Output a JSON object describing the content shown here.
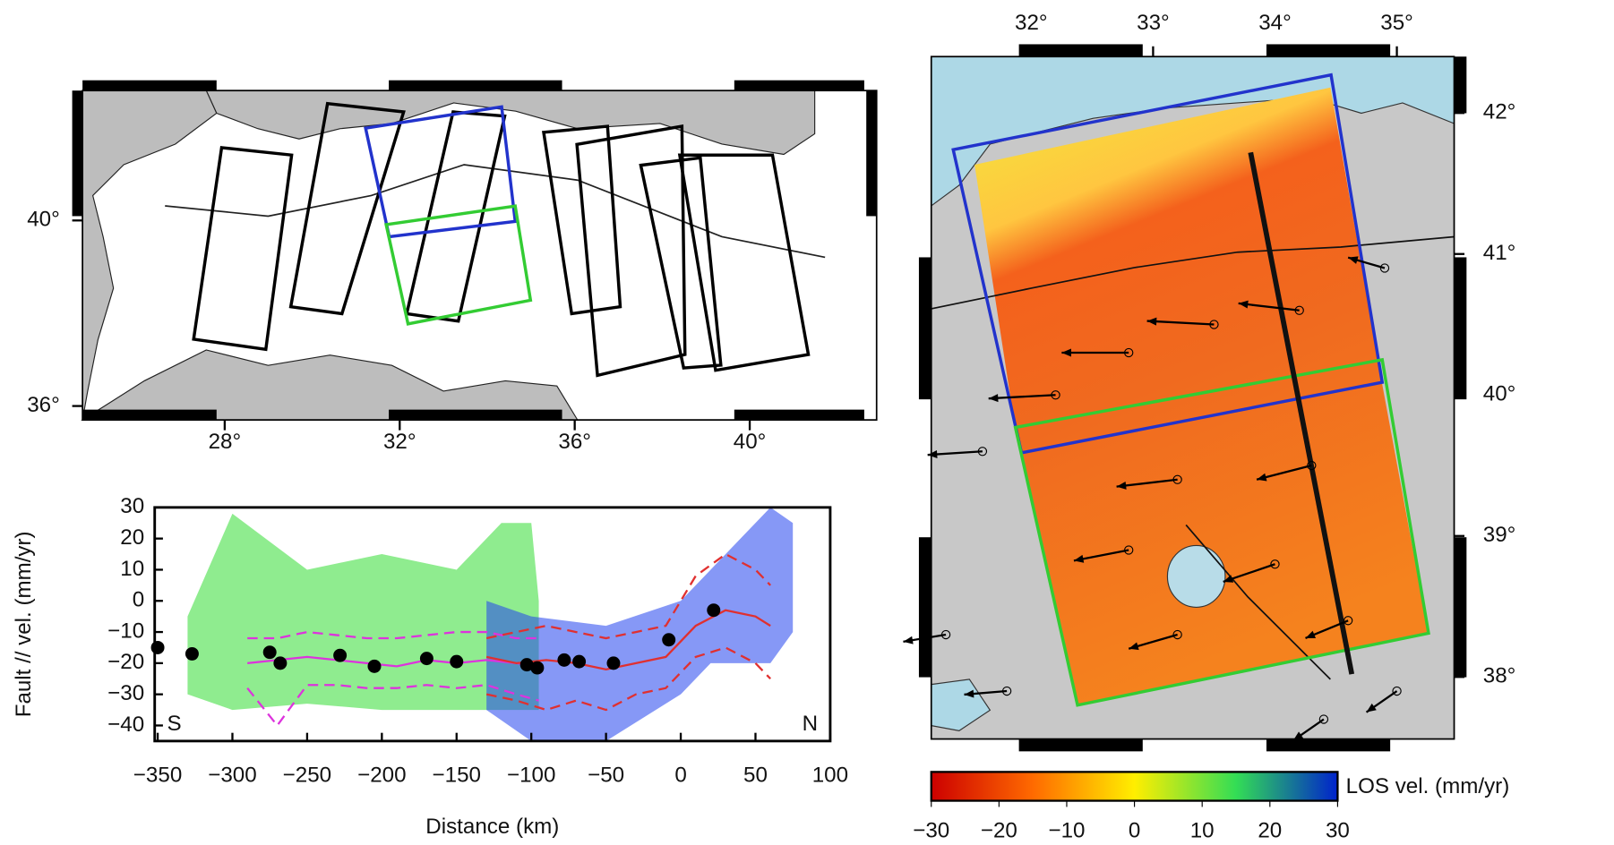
{
  "chart_data": [
    {
      "type": "map",
      "xlim": [
        24.75,
        42.9
      ],
      "ylim": [
        35.7,
        42.8
      ],
      "xticks": [
        {
          "value": 28,
          "label": "28°"
        },
        {
          "value": 32,
          "label": "32°"
        },
        {
          "value": 36,
          "label": "36°"
        },
        {
          "value": 40,
          "label": "40°"
        }
      ],
      "yticks": [
        {
          "value": 36,
          "label": "36°"
        },
        {
          "value": 40,
          "label": "40°"
        }
      ],
      "frames": [
        {
          "color": "#000000",
          "lon": [
            27.93,
            29.53,
            28.94,
            27.29
          ],
          "lat": [
            41.57,
            41.41,
            37.22,
            37.44
          ]
        },
        {
          "color": "#000000",
          "lon": [
            30.35,
            32.09,
            30.68,
            29.51
          ],
          "lat": [
            42.52,
            42.34,
            37.99,
            38.14
          ]
        },
        {
          "color": "#000000",
          "lon": [
            33.22,
            34.4,
            33.34,
            32.16
          ],
          "lat": [
            42.34,
            42.25,
            37.83,
            37.99
          ]
        },
        {
          "color": "#000000",
          "lon": [
            35.29,
            36.75,
            37.04,
            35.93
          ],
          "lat": [
            41.9,
            42.03,
            38.14,
            37.99
          ]
        },
        {
          "color": "#000000",
          "lon": [
            36.05,
            38.45,
            38.52,
            36.52
          ],
          "lat": [
            41.64,
            42.03,
            37.11,
            36.66
          ]
        },
        {
          "color": "#000000",
          "lon": [
            37.51,
            38.87,
            39.34,
            38.49
          ],
          "lat": [
            41.19,
            41.35,
            36.88,
            36.82
          ]
        },
        {
          "color": "#000000",
          "lon": [
            38.4,
            40.52,
            41.34,
            39.22
          ],
          "lat": [
            41.41,
            41.41,
            37.11,
            36.77
          ]
        },
        {
          "color": "#2233cc",
          "lon": [
            31.22,
            34.33,
            34.64,
            31.76
          ],
          "lat": [
            41.99,
            42.45,
            39.98,
            39.65
          ]
        },
        {
          "color": "#33cc33",
          "lon": [
            31.69,
            34.64,
            34.99,
            32.19
          ],
          "lat": [
            39.91,
            40.31,
            38.28,
            37.77
          ]
        }
      ]
    },
    {
      "type": "scatter",
      "xlabel": "Distance (km)",
      "ylabel": "Fault // vel. (mm/yr)",
      "annotations": [
        "S",
        "N"
      ],
      "xlim": [
        -352,
        100
      ],
      "ylim": [
        -45,
        30
      ],
      "xticks": [
        {
          "value": -350,
          "label": "−350"
        },
        {
          "value": -300,
          "label": "−300"
        },
        {
          "value": -250,
          "label": "−250"
        },
        {
          "value": -200,
          "label": "−200"
        },
        {
          "value": -150,
          "label": "−150"
        },
        {
          "value": -100,
          "label": "−100"
        },
        {
          "value": -50,
          "label": "−50"
        },
        0,
        50,
        100
      ],
      "yticks": [
        {
          "value": -40,
          "label": "−40"
        },
        {
          "value": -30,
          "label": "−30"
        },
        {
          "value": -20,
          "label": "−20"
        },
        {
          "value": -10,
          "label": "−10"
        },
        0,
        10,
        20,
        30
      ],
      "color": "#000000",
      "x": [
        -350,
        -327,
        -275,
        -268,
        -228,
        -205,
        -170,
        -150,
        -103,
        -96,
        -78,
        -68,
        -45,
        -8,
        22
      ],
      "values": [
        -15,
        -17,
        -16.5,
        -20,
        -17.5,
        -21,
        -18.5,
        -19.5,
        -20.5,
        -21.5,
        -19,
        -19.5,
        -20,
        -12.5,
        -3
      ],
      "bands": [
        {
          "color": "#33dd33",
          "x": [
            -330,
            -300,
            -250,
            -200,
            -150,
            -120,
            -100,
            -95
          ],
          "low": [
            -30,
            -35,
            -33,
            -35,
            -35,
            -35,
            -35,
            -35
          ],
          "high": [
            -5,
            28,
            10,
            15,
            10,
            25,
            25,
            0
          ]
        },
        {
          "color": "#2244ee",
          "x": [
            -130,
            -100,
            -50,
            0,
            20,
            40,
            60,
            75
          ],
          "low": [
            -35,
            -45,
            -45,
            -30,
            -20,
            -20,
            -20,
            -10
          ],
          "high": [
            0,
            -5,
            -8,
            0,
            10,
            20,
            30,
            25
          ]
        }
      ],
      "lines": [
        {
          "color": "#dd33dd",
          "dashed": false,
          "x": [
            -290,
            -270,
            -250,
            -230,
            -210,
            -190,
            -170,
            -150,
            -130,
            -110,
            -95
          ],
          "values": [
            -20,
            -19,
            -18,
            -19,
            -20,
            -21,
            -19,
            -20,
            -19,
            -20,
            -21
          ]
        },
        {
          "color": "#dd33dd",
          "dashed": true,
          "x": [
            -290,
            -270,
            -250,
            -230,
            -210,
            -190,
            -170,
            -150,
            -130,
            -110,
            -95
          ],
          "values": [
            -12,
            -12,
            -10,
            -11,
            -12,
            -12,
            -11,
            -10,
            -10,
            -12,
            -12
          ]
        },
        {
          "color": "#dd33dd",
          "dashed": true,
          "x": [
            -290,
            -270,
            -250,
            -230,
            -210,
            -190,
            -170,
            -150,
            -130,
            -110,
            -95
          ],
          "values": [
            -28,
            -40,
            -27,
            -27,
            -28,
            -28,
            -27,
            -28,
            -27,
            -30,
            -32
          ]
        },
        {
          "color": "#e03030",
          "dashed": false,
          "x": [
            -130,
            -110,
            -90,
            -70,
            -50,
            -30,
            -10,
            10,
            30,
            50,
            60
          ],
          "values": [
            -18,
            -20,
            -19,
            -20,
            -22,
            -20,
            -18,
            -8,
            -3,
            -5,
            -8
          ]
        },
        {
          "color": "#e03030",
          "dashed": true,
          "x": [
            -130,
            -110,
            -90,
            -70,
            -50,
            -30,
            -10,
            10,
            30,
            50,
            60
          ],
          "values": [
            -12,
            -10,
            -8,
            -10,
            -12,
            -10,
            -8,
            8,
            15,
            10,
            5
          ]
        },
        {
          "color": "#e03030",
          "dashed": true,
          "x": [
            -130,
            -110,
            -90,
            -70,
            -50,
            -30,
            -10,
            10,
            30,
            50,
            60
          ],
          "values": [
            -30,
            -32,
            -35,
            -32,
            -35,
            -30,
            -28,
            -18,
            -15,
            -20,
            -25
          ]
        }
      ]
    },
    {
      "type": "map",
      "xlim": [
        31.18,
        35.47
      ],
      "ylim": [
        37.56,
        42.4
      ],
      "xticks": [
        {
          "value": 32,
          "label": "32°"
        },
        {
          "value": 33,
          "label": "33°"
        },
        {
          "value": 34,
          "label": "34°"
        },
        {
          "value": 35,
          "label": "35°"
        }
      ],
      "yticks": [
        {
          "value": 38,
          "label": "38°"
        },
        {
          "value": 39,
          "label": "39°"
        },
        {
          "value": 40,
          "label": "40°"
        },
        {
          "value": 41,
          "label": "41°"
        },
        {
          "value": 42,
          "label": "42°"
        }
      ],
      "frames": [
        {
          "color": "#2233cc",
          "lon": [
            31.36,
            34.46,
            34.88,
            31.92
          ],
          "lat": [
            41.74,
            42.27,
            40.09,
            39.59
          ]
        },
        {
          "color": "#33cc33",
          "lon": [
            31.87,
            34.88,
            35.26,
            32.38
          ],
          "lat": [
            39.77,
            40.25,
            38.31,
            37.8
          ]
        }
      ],
      "profile": {
        "lon": [
          33.8,
          34.63
        ],
        "lat": [
          41.72,
          38.02
        ]
      },
      "vectors": {
        "lon": [
          34.9,
          34.2,
          33.5,
          32.8,
          32.2,
          31.6,
          33.2,
          34.3,
          32.8,
          34.0,
          33.2,
          34.6,
          31.3,
          31.8,
          35.0,
          34.4
        ],
        "lat": [
          40.9,
          40.6,
          40.5,
          40.3,
          40.0,
          39.6,
          39.4,
          39.5,
          38.9,
          38.8,
          38.3,
          38.4,
          38.3,
          37.9,
          37.9,
          37.7
        ],
        "east": [
          -12,
          -20,
          -22,
          -22,
          -22,
          -18,
          -20,
          -18,
          -18,
          -17,
          -16,
          -14,
          -14,
          -14,
          -10,
          -10
        ],
        "north": [
          3,
          2,
          1,
          0,
          -1,
          -1,
          -2,
          -4,
          -3,
          -5,
          -4,
          -5,
          -2,
          -1,
          -6,
          -6
        ]
      },
      "colorbar": {
        "label": "LOS vel. (mm/yr)",
        "lim": [
          -30,
          30
        ],
        "colors": [
          "#cc0000",
          "#ff6a00",
          "#ffee00",
          "#33dd55",
          "#0022cc"
        ],
        "ticks": [
          {
            "value": -30,
            "label": "−30"
          },
          {
            "value": -20,
            "label": "−20"
          },
          {
            "value": -10,
            "label": "−10"
          },
          0,
          10,
          20,
          30
        ]
      }
    }
  ]
}
